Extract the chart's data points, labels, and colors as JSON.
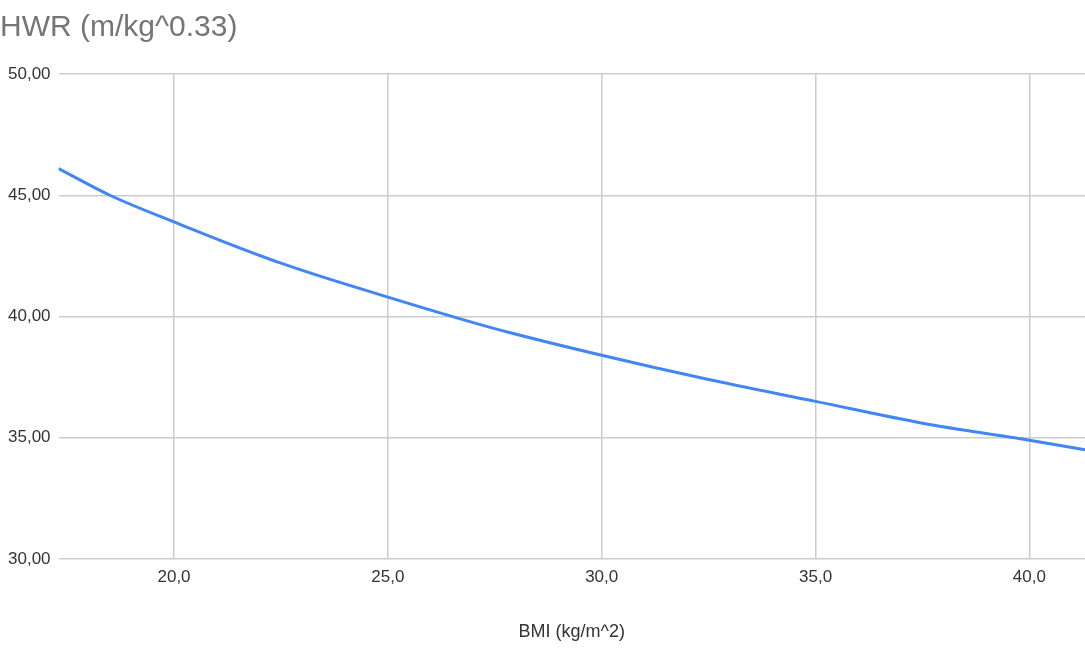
{
  "chart_data": {
    "type": "line",
    "title": "HWR (m/kg^0.33)",
    "xlabel": "BMI (kg/m^2)",
    "x": [
      17.3,
      18.5,
      20,
      22.5,
      25,
      27.5,
      30,
      32.5,
      35,
      37.5,
      40,
      41.3
    ],
    "series": [
      {
        "color": "#4285f4",
        "values": [
          46.1,
          45.0,
          43.9,
          42.2,
          40.8,
          39.5,
          38.4,
          37.4,
          36.5,
          35.6,
          34.9,
          34.5
        ]
      }
    ],
    "xlim": [
      17.3,
      41.3
    ],
    "xticks": [
      {
        "value": 20,
        "label": "20,0"
      },
      {
        "value": 25,
        "label": "25,0"
      },
      {
        "value": 30,
        "label": "30,0"
      },
      {
        "value": 35,
        "label": "35,0"
      },
      {
        "value": 40,
        "label": "40,0"
      }
    ],
    "ylim": [
      30,
      50
    ],
    "yticks": [
      {
        "value": 30,
        "label": "30,00"
      },
      {
        "value": 35,
        "label": "35,00"
      },
      {
        "value": 40,
        "label": "40,00"
      },
      {
        "value": 45,
        "label": "45,00"
      },
      {
        "value": 50,
        "label": "50,00"
      }
    ],
    "grid": true,
    "legend": false,
    "marker": "none",
    "line_style": "solid"
  }
}
